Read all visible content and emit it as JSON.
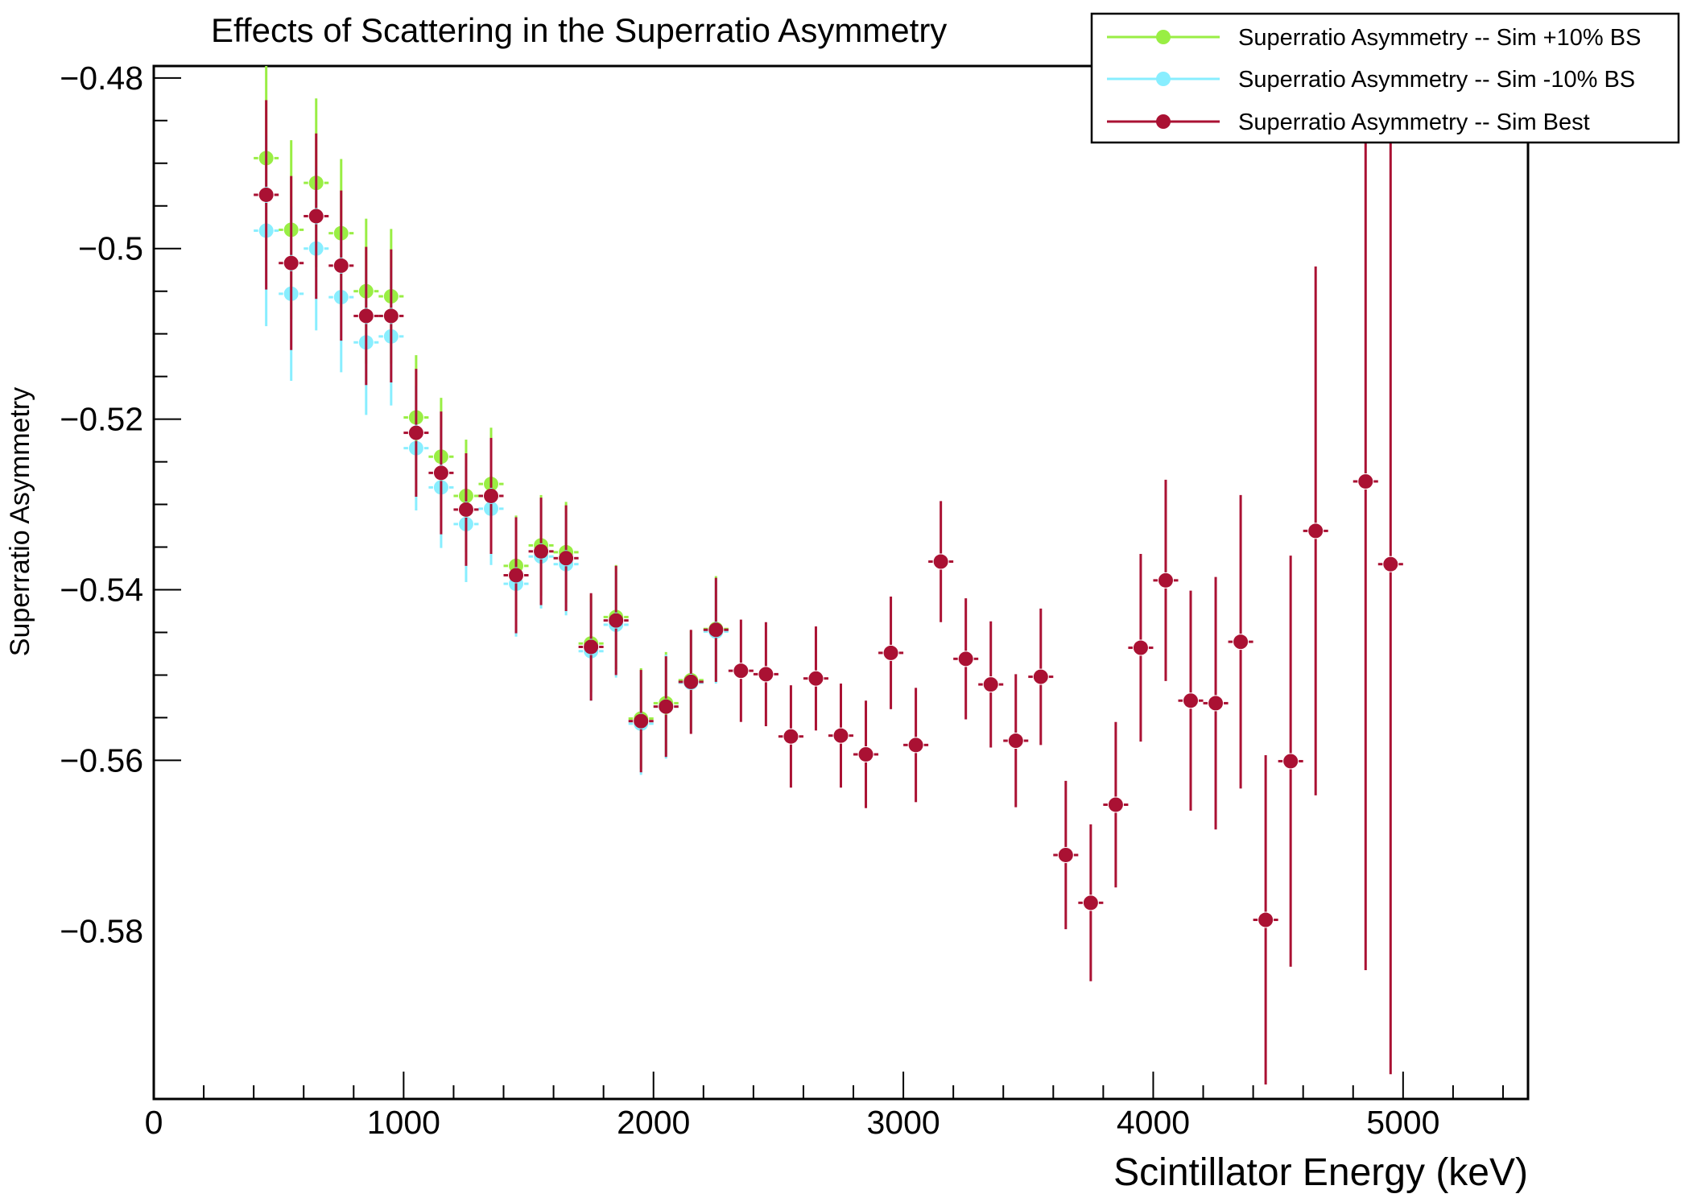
{
  "chart_data": {
    "type": "scatter",
    "title": "Effects of Scattering in the Superratio Asymmetry",
    "xlabel": "Scintillator Energy (keV)",
    "ylabel": "Superratio Asymmetry",
    "xlim": [
      0,
      5500
    ],
    "ylim": [
      -0.5997,
      -0.4786
    ],
    "x_ticks": [
      0,
      1000,
      2000,
      3000,
      4000,
      5000
    ],
    "x_tick_labels": [
      "0",
      "1000",
      "2000",
      "3000",
      "4000",
      "5000"
    ],
    "y_ticks": [
      -0.48,
      -0.5,
      -0.52,
      -0.54,
      -0.56,
      -0.58
    ],
    "y_tick_labels": [
      "−0.48",
      "−0.5",
      "−0.52",
      "−0.54",
      "−0.56",
      "−0.58"
    ],
    "x_bin_halfwidth": 50,
    "legend_position": "top-right",
    "grid": false,
    "x": [
      450,
      550,
      650,
      750,
      850,
      950,
      1050,
      1150,
      1250,
      1350,
      1450,
      1550,
      1650,
      1750,
      1850,
      1950,
      2050,
      2150,
      2250,
      2350,
      2450,
      2550,
      2650,
      2750,
      2850,
      2950,
      3050,
      3150,
      3250,
      3350,
      3450,
      3550,
      3650,
      3750,
      3850,
      3950,
      4050,
      4150,
      4250,
      4350,
      4450,
      4550,
      4650,
      4850,
      4950
    ],
    "series": [
      {
        "name": "Superratio Asymmetry -- Sim +10% BS",
        "color": "#99ee44",
        "values": [
          -0.4894,
          -0.4978,
          -0.4923,
          -0.4982,
          -0.505,
          -0.5056,
          -0.5198,
          -0.5244,
          -0.529,
          -0.5276,
          -0.5372,
          -0.5348,
          -0.5356,
          -0.5463,
          -0.5432,
          -0.5551,
          -0.5533,
          -0.5506,
          -0.5446
        ],
        "errors": [
          0.0108,
          0.0105,
          0.0099,
          0.0087,
          0.0085,
          0.0079,
          0.0073,
          0.0069,
          0.0066,
          0.0066,
          0.0059,
          0.0059,
          0.0059,
          0.0057,
          0.0061,
          0.0059,
          0.006,
          0.0058,
          0.0062
        ]
      },
      {
        "name": "Superratio Asymmetry -- Sim -10% BS",
        "color": "#88eeff",
        "values": [
          -0.4979,
          -0.5053,
          -0.5,
          -0.5057,
          -0.511,
          -0.5103,
          -0.5234,
          -0.528,
          -0.5323,
          -0.5305,
          -0.5393,
          -0.5361,
          -0.537,
          -0.5472,
          -0.5441,
          -0.5557,
          -0.5537,
          -0.5509,
          -0.5449
        ],
        "errors": [
          0.0112,
          0.0102,
          0.0096,
          0.0088,
          0.0085,
          0.0081,
          0.0073,
          0.0071,
          0.0068,
          0.0066,
          0.0062,
          0.0061,
          0.006,
          0.0058,
          0.0062,
          0.006,
          0.0061,
          0.0059,
          0.0061
        ]
      },
      {
        "name": "Superratio Asymmetry -- Sim Best",
        "color": "#aa1133",
        "values": [
          -0.4937,
          -0.5017,
          -0.4962,
          -0.502,
          -0.5079,
          -0.5079,
          -0.5216,
          -0.5263,
          -0.5306,
          -0.529,
          -0.5383,
          -0.5355,
          -0.5363,
          -0.5467,
          -0.5436,
          -0.5554,
          -0.5537,
          -0.5508,
          -0.5447,
          -0.5495,
          -0.5499,
          -0.5572,
          -0.5504,
          -0.5571,
          -0.5593,
          -0.5474,
          -0.5582,
          -0.5367,
          -0.5481,
          -0.5511,
          -0.5577,
          -0.5502,
          -0.5711,
          -0.5767,
          -0.5652,
          -0.5468,
          -0.5389,
          -0.553,
          -0.5533,
          -0.5461,
          -0.5787,
          -0.5601,
          -0.5331,
          -0.5273,
          -0.537
        ],
        "errors": [
          0.0111,
          0.0102,
          0.0097,
          0.0088,
          0.0081,
          0.0078,
          0.0075,
          0.0072,
          0.0066,
          0.0068,
          0.0068,
          0.0063,
          0.0062,
          0.0063,
          0.0064,
          0.006,
          0.0059,
          0.0061,
          0.0061,
          0.006,
          0.0061,
          0.006,
          0.0061,
          0.0061,
          0.0063,
          0.0066,
          0.0067,
          0.0071,
          0.0071,
          0.0074,
          0.0078,
          0.008,
          0.0087,
          0.0092,
          0.0097,
          0.011,
          0.0118,
          0.0129,
          0.0148,
          0.0172,
          0.0193,
          0.0241,
          0.031,
          0.0573,
          0.0598
        ]
      }
    ]
  }
}
